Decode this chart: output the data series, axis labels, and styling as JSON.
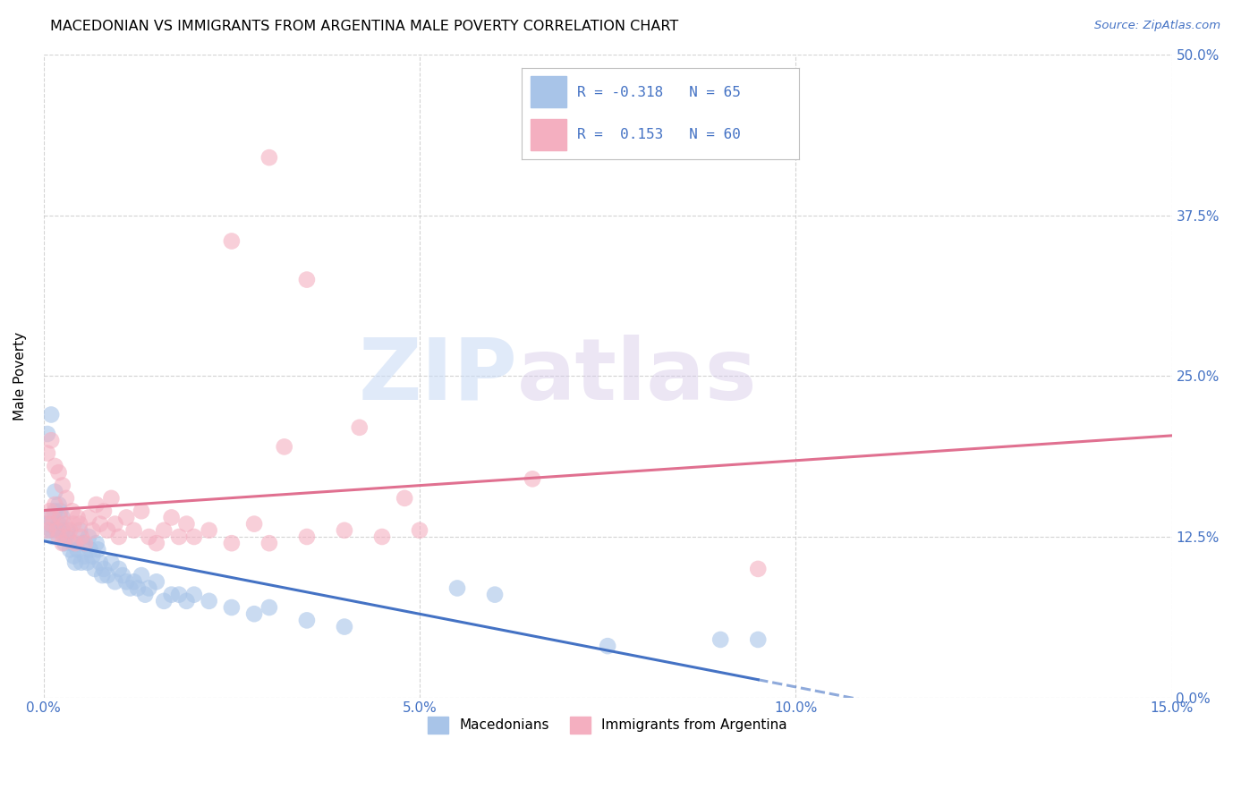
{
  "title": "MACEDONIAN VS IMMIGRANTS FROM ARGENTINA MALE POVERTY CORRELATION CHART",
  "source": "Source: ZipAtlas.com",
  "ylabel": "Male Poverty",
  "xlim": [
    0.0,
    15.0
  ],
  "ylim": [
    0.0,
    50.0
  ],
  "xlabel_vals": [
    0.0,
    5.0,
    10.0,
    15.0
  ],
  "ylabel_vals": [
    0.0,
    12.5,
    25.0,
    37.5,
    50.0
  ],
  "macedonians_color": "#a8c4e8",
  "macedonians_line_color": "#4472c4",
  "argentina_color": "#f4afc0",
  "argentina_line_color": "#e07090",
  "macedonians_R": "-0.318",
  "macedonians_N": "65",
  "argentina_R": "0.153",
  "argentina_N": "60",
  "legend_label_1": "Macedonians",
  "legend_label_2": "Immigrants from Argentina",
  "watermark_zip": "ZIP",
  "watermark_atlas": "atlas",
  "macedonians_x": [
    0.05,
    0.08,
    0.1,
    0.12,
    0.15,
    0.18,
    0.2,
    0.22,
    0.25,
    0.28,
    0.3,
    0.32,
    0.35,
    0.38,
    0.4,
    0.42,
    0.45,
    0.48,
    0.5,
    0.52,
    0.55,
    0.58,
    0.6,
    0.62,
    0.65,
    0.68,
    0.7,
    0.72,
    0.75,
    0.78,
    0.8,
    0.85,
    0.9,
    0.95,
    1.0,
    1.05,
    1.1,
    1.15,
    1.2,
    1.25,
    1.3,
    1.35,
    1.4,
    1.5,
    1.6,
    1.7,
    1.8,
    1.9,
    2.0,
    2.2,
    2.5,
    2.8,
    3.0,
    3.5,
    4.0,
    0.05,
    0.1,
    0.15,
    0.2,
    0.25,
    5.5,
    6.0,
    7.5,
    9.0,
    9.5
  ],
  "macedonians_y": [
    13.5,
    14.0,
    13.0,
    12.5,
    14.5,
    13.0,
    13.5,
    14.5,
    13.0,
    12.0,
    12.5,
    13.0,
    11.5,
    12.0,
    11.0,
    10.5,
    11.5,
    13.0,
    10.5,
    12.0,
    11.0,
    10.5,
    12.5,
    11.5,
    11.0,
    10.0,
    12.0,
    11.5,
    10.5,
    9.5,
    10.0,
    9.5,
    10.5,
    9.0,
    10.0,
    9.5,
    9.0,
    8.5,
    9.0,
    8.5,
    9.5,
    8.0,
    8.5,
    9.0,
    7.5,
    8.0,
    8.0,
    7.5,
    8.0,
    7.5,
    7.0,
    6.5,
    7.0,
    6.0,
    5.5,
    20.5,
    22.0,
    16.0,
    15.0,
    14.0,
    8.5,
    8.0,
    4.0,
    4.5,
    4.5
  ],
  "argentina_x": [
    0.05,
    0.08,
    0.1,
    0.12,
    0.15,
    0.18,
    0.2,
    0.22,
    0.25,
    0.28,
    0.3,
    0.32,
    0.35,
    0.38,
    0.4,
    0.42,
    0.45,
    0.48,
    0.5,
    0.55,
    0.6,
    0.65,
    0.7,
    0.75,
    0.8,
    0.85,
    0.9,
    0.95,
    1.0,
    1.1,
    1.2,
    1.3,
    1.4,
    1.5,
    1.6,
    1.7,
    1.8,
    1.9,
    2.0,
    2.2,
    2.5,
    2.8,
    3.0,
    3.5,
    4.0,
    4.5,
    5.0,
    0.05,
    0.1,
    0.15,
    0.2,
    0.25,
    3.2,
    4.2,
    6.5,
    9.5,
    2.5,
    3.0,
    3.5,
    4.8
  ],
  "argentina_y": [
    13.0,
    14.5,
    13.5,
    14.0,
    15.0,
    13.0,
    12.5,
    14.0,
    12.0,
    13.5,
    15.5,
    12.5,
    13.0,
    14.5,
    13.5,
    12.0,
    14.0,
    13.5,
    12.5,
    12.0,
    14.0,
    13.0,
    15.0,
    13.5,
    14.5,
    13.0,
    15.5,
    13.5,
    12.5,
    14.0,
    13.0,
    14.5,
    12.5,
    12.0,
    13.0,
    14.0,
    12.5,
    13.5,
    12.5,
    13.0,
    12.0,
    13.5,
    12.0,
    12.5,
    13.0,
    12.5,
    13.0,
    19.0,
    20.0,
    18.0,
    17.5,
    16.5,
    19.5,
    21.0,
    17.0,
    10.0,
    35.5,
    42.0,
    32.5,
    15.5
  ]
}
